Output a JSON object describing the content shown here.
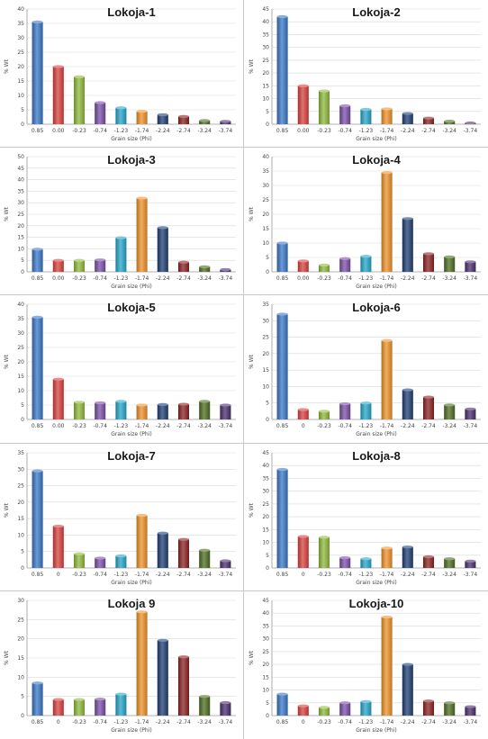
{
  "colors": [
    "#3a78c9",
    "#d9413e",
    "#8fba3c",
    "#7b4fa8",
    "#27a6c9",
    "#f0922b",
    "#1f3f74",
    "#8c2222",
    "#4f6e22",
    "#4a2f6e"
  ],
  "chart_data": [
    {
      "type": "bar",
      "title": "Lokoja-1",
      "xlabel": "Grain size (Phi)",
      "ylabel": "% Wt",
      "ylim": [
        0,
        40
      ],
      "yticks": [
        0,
        5,
        10,
        15,
        20,
        25,
        30,
        35,
        40
      ],
      "categories": [
        "0.85",
        "0.00",
        "-0.23",
        "-0.74",
        "-1.23",
        "-1.74",
        "-2.24",
        "-2.74",
        "-3.24",
        "-3.74"
      ],
      "values": [
        35.5,
        20,
        16.5,
        7.5,
        5.7,
        4.5,
        3.3,
        2.7,
        1.3,
        1.0
      ]
    },
    {
      "type": "bar",
      "title": "Lokoja-2",
      "xlabel": "Grain size (Phi)",
      "ylabel": "% Wt",
      "ylim": [
        0,
        45
      ],
      "yticks": [
        0,
        5,
        10,
        15,
        20,
        25,
        30,
        35,
        40,
        45
      ],
      "categories": [
        "0.85",
        "0.00",
        "-0.23",
        "-0.74",
        "-1.23",
        "-1.74",
        "-2.24",
        "-2.74",
        "-3.24",
        "-3.74"
      ],
      "values": [
        42,
        15,
        13,
        7.2,
        5.8,
        6.0,
        4.2,
        2.4,
        1.2,
        0.5
      ]
    },
    {
      "type": "bar",
      "title": "Lokoja-3",
      "xlabel": "Grain size (Phi)",
      "ylabel": "% Wt",
      "ylim": [
        0,
        50
      ],
      "yticks": [
        0,
        5,
        10,
        15,
        20,
        25,
        30,
        35,
        40,
        45,
        50
      ],
      "categories": [
        "0.85",
        "0.00",
        "-0.23",
        "-0.74",
        "-1.23",
        "-1.74",
        "-2.24",
        "-2.74",
        "-3.24",
        "-3.74"
      ],
      "values": [
        9.8,
        5.0,
        5.0,
        5.2,
        14.8,
        32,
        19.2,
        4.2,
        2.2,
        1.0
      ]
    },
    {
      "type": "bar",
      "title": "Lokoja-4",
      "xlabel": "Grain size (Phi)",
      "ylabel": "% Wt",
      "ylim": [
        0,
        40
      ],
      "yticks": [
        0,
        5,
        10,
        15,
        20,
        25,
        30,
        35,
        40
      ],
      "categories": [
        "0.85",
        "0.00",
        "-0.23",
        "-0.74",
        "-1.23",
        "-1.74",
        "-2.24",
        "-2.74",
        "-3.24",
        "-3.74"
      ],
      "values": [
        10,
        3.8,
        2.4,
        4.6,
        5.4,
        34.5,
        18.5,
        6.3,
        5.2,
        3.5
      ]
    },
    {
      "type": "bar",
      "title": "Lokoja-5",
      "xlabel": "Grain size (Phi)",
      "ylabel": "% Wt",
      "ylim": [
        0,
        40
      ],
      "yticks": [
        0,
        5,
        10,
        15,
        20,
        25,
        30,
        35,
        40
      ],
      "categories": [
        "0.85",
        "0.00",
        "-0.23",
        "-0.74",
        "-1.23",
        "-1.74",
        "-2.24",
        "-2.74",
        "-3.24",
        "-3.74"
      ],
      "values": [
        35.5,
        14,
        6.0,
        5.8,
        6.3,
        5.0,
        5.2,
        5.3,
        6.3,
        5.0
      ]
    },
    {
      "type": "bar",
      "title": "Lokoja-6",
      "xlabel": "Grain size (Phi)",
      "ylabel": "% Wt",
      "ylim": [
        0,
        35
      ],
      "yticks": [
        0,
        5,
        10,
        15,
        20,
        25,
        30,
        35
      ],
      "categories": [
        "0.85",
        "0",
        "-0.23",
        "-0.74",
        "-1.23",
        "-1.74",
        "-2.24",
        "-2.74",
        "-3.24",
        "-3.74"
      ],
      "values": [
        32,
        3.0,
        2.5,
        4.8,
        5.0,
        24,
        9.0,
        6.8,
        4.4,
        3.2
      ]
    },
    {
      "type": "bar",
      "title": "Lokoja-7",
      "xlabel": "Grain size (Phi)",
      "ylabel": "% Wt",
      "ylim": [
        0,
        35
      ],
      "yticks": [
        0,
        5,
        10,
        15,
        20,
        25,
        30,
        35
      ],
      "categories": [
        "0.85",
        "0",
        "-0.23",
        "-0.74",
        "-1.23",
        "-1.74",
        "-2.24",
        "-2.74",
        "-3.24",
        "-3.74"
      ],
      "values": [
        29.5,
        12.7,
        4.3,
        3.0,
        3.7,
        16,
        10.6,
        8.7,
        5.4,
        2.2
      ]
    },
    {
      "type": "bar",
      "title": "Lokoja-8",
      "xlabel": "Grain size (Phi)",
      "ylabel": "% Wt",
      "ylim": [
        0,
        45
      ],
      "yticks": [
        0,
        5,
        10,
        15,
        20,
        25,
        30,
        35,
        40,
        45
      ],
      "categories": [
        "0.85",
        "0",
        "-0.23",
        "-0.74",
        "-1.23",
        "-1.74",
        "-2.24",
        "-2.74",
        "-3.24",
        "-3.74"
      ],
      "values": [
        38.5,
        12.3,
        12,
        4.0,
        3.6,
        7.8,
        8.2,
        4.4,
        3.6,
        2.7
      ]
    },
    {
      "type": "bar",
      "title": "Lokoja 9",
      "xlabel": "Grain size (Phi)",
      "ylabel": "% Wt",
      "ylim": [
        0,
        30
      ],
      "yticks": [
        0,
        5,
        10,
        15,
        20,
        25,
        30
      ],
      "categories": [
        "0.85",
        "0",
        "-0.23",
        "-0.74",
        "-1.23",
        "-1.74",
        "-2.24",
        "-2.74",
        "-3.24",
        "-3.74"
      ],
      "values": [
        8.5,
        4.2,
        4.2,
        4.3,
        5.6,
        27,
        19.6,
        15.3,
        5.0,
        3.4
      ]
    },
    {
      "type": "bar",
      "title": "Lokoja-10",
      "xlabel": "Grain size (Phi)",
      "ylabel": "% Wt",
      "ylim": [
        0,
        45
      ],
      "yticks": [
        0,
        5,
        10,
        15,
        20,
        25,
        30,
        35,
        40,
        45
      ],
      "categories": [
        "0.85",
        "0",
        "-0.23",
        "-0.74",
        "-1.23",
        "-1.74",
        "-2.24",
        "-2.74",
        "-3.24",
        "-3.74"
      ],
      "values": [
        8.4,
        3.8,
        3.2,
        5.0,
        5.5,
        38.5,
        20,
        5.7,
        5.0,
        3.5
      ]
    }
  ]
}
